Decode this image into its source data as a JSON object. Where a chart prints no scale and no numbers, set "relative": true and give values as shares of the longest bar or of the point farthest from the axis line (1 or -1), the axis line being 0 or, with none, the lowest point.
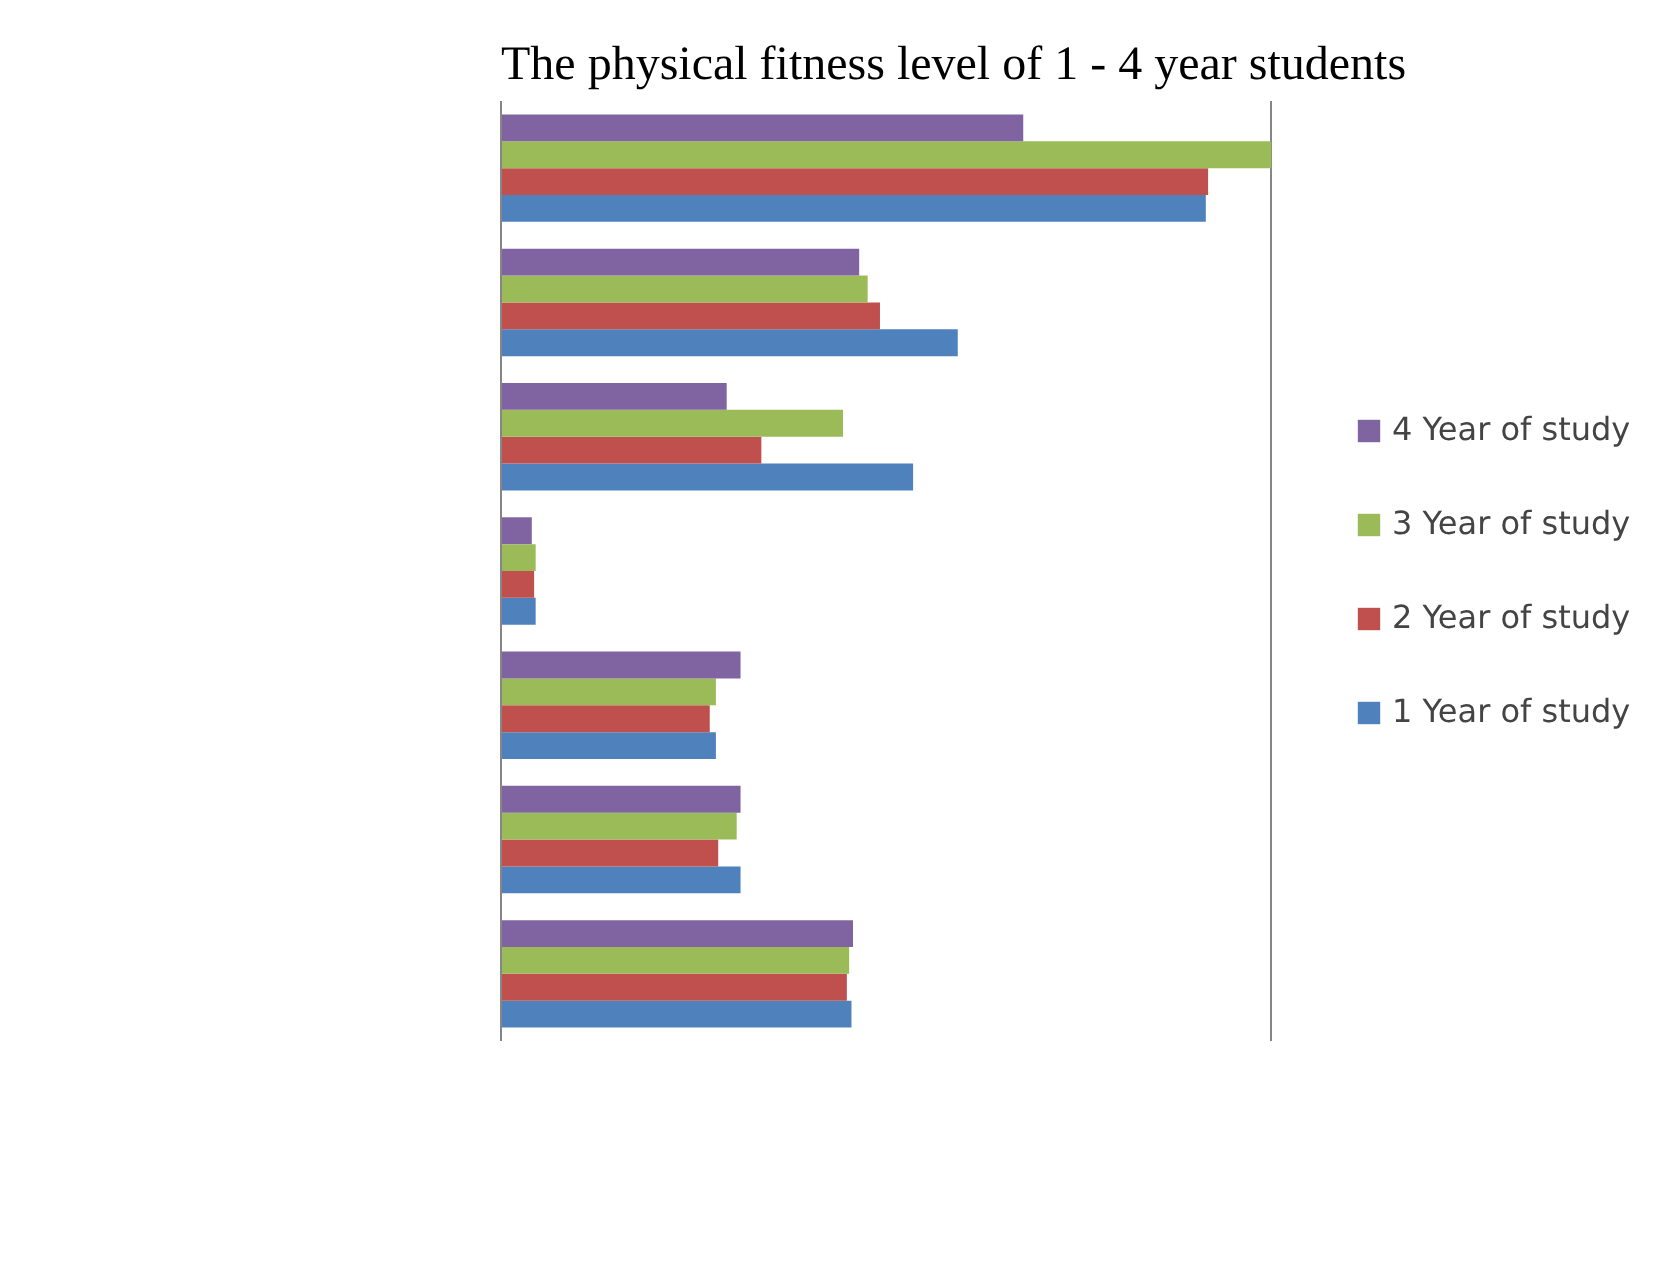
{
  "chart_data": {
    "type": "bar",
    "orientation": "horizontal",
    "relative": true,
    "title": "The physical fitness level of 1 - 4 year students",
    "categories": [
      null,
      null,
      null,
      null,
      null,
      null,
      null
    ],
    "series": [
      {
        "name": "1 Year of study",
        "color": "#4f81bd",
        "values": [
          0.915,
          0.593,
          0.535,
          0.045,
          0.279,
          0.311,
          0.455
        ]
      },
      {
        "name": "2 Year of study",
        "color": "#c0504d",
        "values": [
          0.918,
          0.492,
          0.338,
          0.043,
          0.271,
          0.282,
          0.449
        ]
      },
      {
        "name": "3 Year of study",
        "color": "#9bbb59",
        "values": [
          1,
          0.476,
          0.444,
          0.045,
          0.279,
          0.306,
          0.452
        ]
      },
      {
        "name": "4 Year of study",
        "color": "#8064a2",
        "values": [
          0.678,
          0.465,
          0.293,
          0.04,
          0.311,
          0.311,
          0.457
        ]
      }
    ],
    "grid": "x",
    "legend": "right"
  }
}
